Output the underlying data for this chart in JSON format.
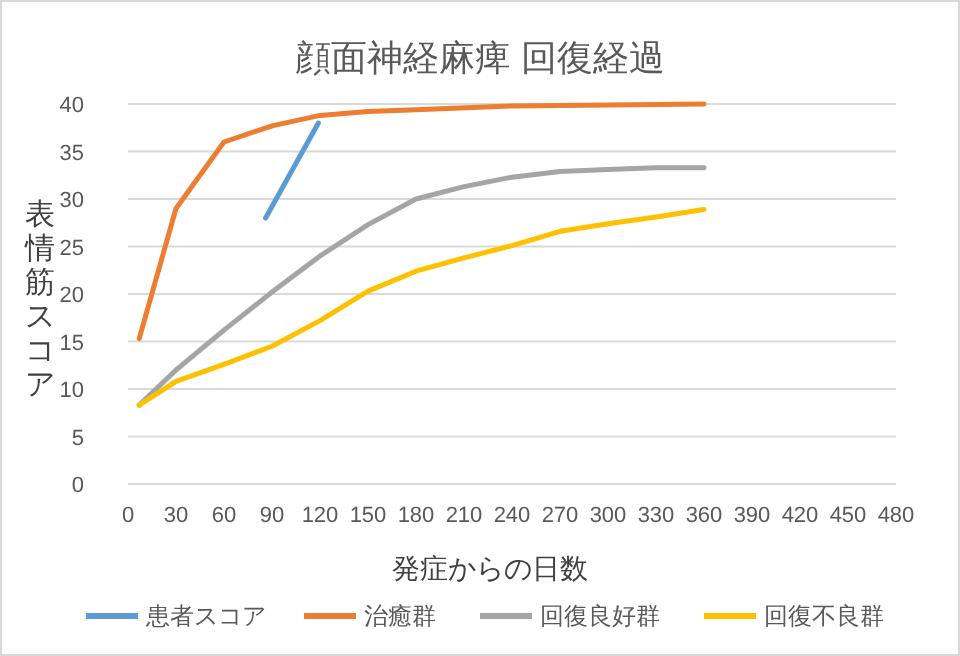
{
  "chart_data": {
    "type": "line",
    "title": "顔面神経麻痺 回復経過",
    "xlabel": "発症からの日数",
    "ylabel": "表情筋スコア",
    "xlim": [
      0,
      480
    ],
    "xticks": [
      0,
      30,
      60,
      90,
      120,
      150,
      180,
      210,
      240,
      270,
      300,
      330,
      360,
      390,
      420,
      450,
      480
    ],
    "ylim": [
      0,
      40
    ],
    "yticks": [
      0,
      5,
      10,
      15,
      20,
      25,
      30,
      35,
      40
    ],
    "grid": "y",
    "legend": "bottom",
    "marker": "none",
    "line_style": "solid",
    "series": [
      {
        "name": "患者スコア",
        "color": "#5b9bd5",
        "x": [
          86,
          119
        ],
        "values": [
          28,
          38
        ]
      },
      {
        "name": "治癒群",
        "color": "#ed7d31",
        "x": [
          7,
          30,
          60,
          90,
          120,
          150,
          180,
          240,
          360
        ],
        "values": [
          15.3,
          29,
          36,
          37.7,
          38.8,
          39.2,
          39.4,
          39.8,
          40
        ]
      },
      {
        "name": "回復良好群",
        "color": "#a5a5a5",
        "x": [
          7,
          30,
          60,
          90,
          120,
          150,
          180,
          210,
          240,
          270,
          300,
          330,
          360
        ],
        "values": [
          8.3,
          12,
          16.2,
          20.2,
          24,
          27.3,
          30,
          31.3,
          32.3,
          32.9,
          33.1,
          33.3,
          33.3
        ]
      },
      {
        "name": "回復不良群",
        "color": "#ffc000",
        "x": [
          7,
          30,
          60,
          90,
          120,
          150,
          180,
          210,
          240,
          270,
          300,
          330,
          360
        ],
        "values": [
          8.3,
          10.8,
          12.6,
          14.5,
          17.2,
          20.3,
          22.4,
          23.8,
          25.1,
          26.6,
          27.4,
          28.1,
          28.9
        ]
      }
    ]
  }
}
